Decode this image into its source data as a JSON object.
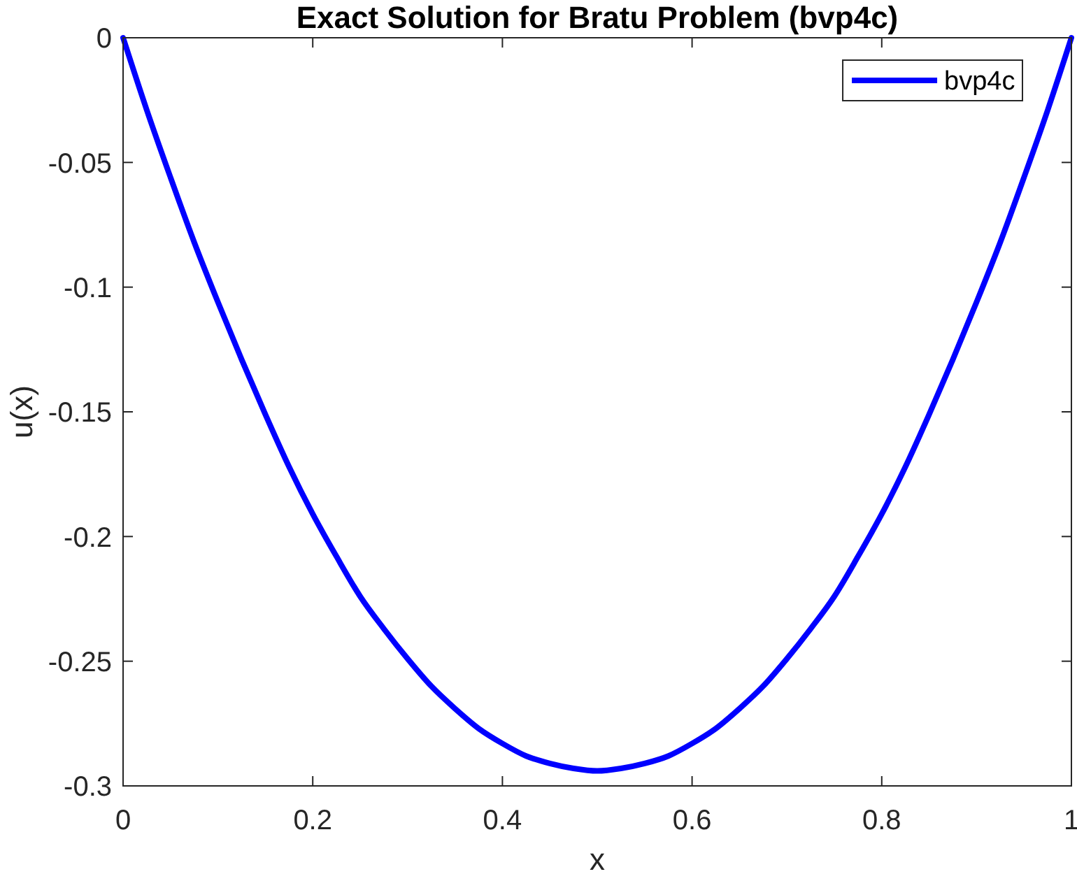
{
  "chart_data": {
    "type": "line",
    "title": "Exact Solution for Bratu Problem (bvp4c)",
    "xlabel": "x",
    "ylabel": "u(x)",
    "x": [
      0,
      0.025,
      0.05,
      0.075,
      0.1,
      0.125,
      0.15,
      0.175,
      0.2,
      0.225,
      0.25,
      0.275,
      0.3,
      0.325,
      0.35,
      0.375,
      0.4,
      0.425,
      0.45,
      0.475,
      0.5,
      0.525,
      0.55,
      0.575,
      0.6,
      0.625,
      0.65,
      0.675,
      0.7,
      0.725,
      0.75,
      0.775,
      0.8,
      0.825,
      0.85,
      0.875,
      0.9,
      0.925,
      0.95,
      0.975,
      1
    ],
    "series": [
      {
        "name": "bvp4c",
        "color": "#0000ff",
        "values": [
          0,
          -0.029,
          -0.056,
          -0.082,
          -0.106,
          -0.129,
          -0.151,
          -0.172,
          -0.191,
          -0.208,
          -0.224,
          -0.237,
          -0.249,
          -0.26,
          -0.269,
          -0.277,
          -0.283,
          -0.288,
          -0.291,
          -0.293,
          -0.294,
          -0.293,
          -0.291,
          -0.288,
          -0.283,
          -0.277,
          -0.269,
          -0.26,
          -0.249,
          -0.237,
          -0.224,
          -0.208,
          -0.191,
          -0.172,
          -0.151,
          -0.129,
          -0.106,
          -0.082,
          -0.056,
          -0.029,
          0
        ]
      }
    ],
    "xlim": [
      0,
      1
    ],
    "ylim": [
      -0.3,
      0
    ],
    "xticks": [
      0,
      0.2,
      0.4,
      0.6,
      0.8,
      1
    ],
    "yticks": [
      -0.3,
      -0.25,
      -0.2,
      -0.15,
      -0.1,
      -0.05,
      0
    ],
    "legend": "top right",
    "line_style": "solid"
  }
}
